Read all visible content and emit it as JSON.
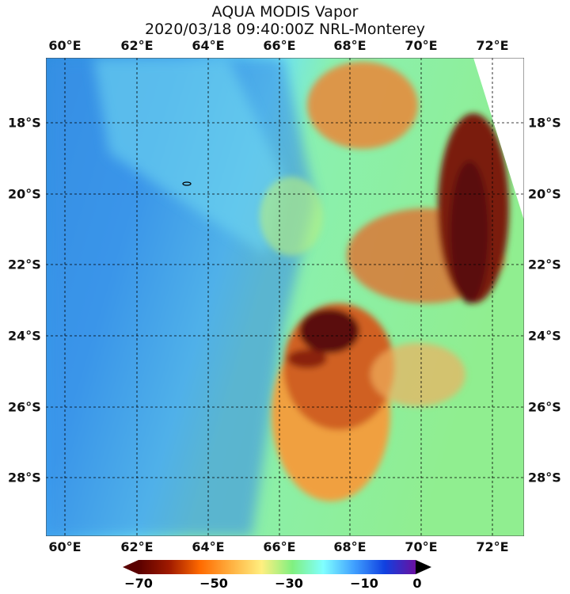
{
  "title": {
    "line1": "AQUA MODIS Vapor",
    "line2": "2020/03/18 09:40:00Z NRL-Monterey"
  },
  "lon_labels": [
    "60°E",
    "62°E",
    "64°E",
    "66°E",
    "68°E",
    "70°E",
    "72°E"
  ],
  "lat_labels": [
    "18°S",
    "20°S",
    "22°S",
    "24°S",
    "26°S",
    "28°S"
  ],
  "colorbar": {
    "ticks": [
      "−70",
      "−50",
      "−30",
      "−10",
      "0"
    ],
    "min": -70,
    "max": 0,
    "colors": [
      "#5a0000",
      "#a01a00",
      "#ff6a00",
      "#ffb040",
      "#ffef80",
      "#80f080",
      "#80ffff",
      "#40a0ff",
      "#1040e0",
      "#6a10a0"
    ]
  }
}
